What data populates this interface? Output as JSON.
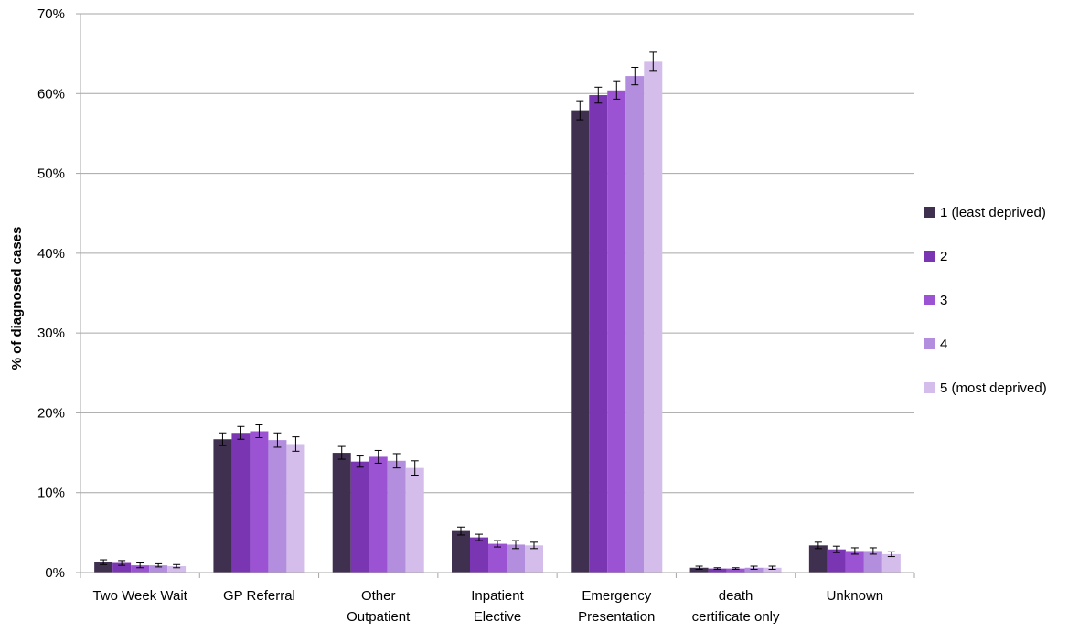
{
  "chart_data": {
    "type": "bar",
    "title": "",
    "xlabel": "",
    "ylabel": "% of diagnosed cases",
    "ylim": [
      0,
      70
    ],
    "yticks": [
      0,
      10,
      20,
      30,
      40,
      50,
      60,
      70
    ],
    "ytick_labels": [
      "0%",
      "10%",
      "20%",
      "30%",
      "40%",
      "50%",
      "60%",
      "70%"
    ],
    "grid": true,
    "legend_position": "right",
    "categories": [
      [
        "Two Week Wait"
      ],
      [
        "GP Referral"
      ],
      [
        "Other",
        "Outpatient"
      ],
      [
        "Inpatient",
        "Elective"
      ],
      [
        "Emergency",
        "Presentation"
      ],
      [
        "death",
        "certificate only"
      ],
      [
        "Unknown"
      ]
    ],
    "series": [
      {
        "name": "1 (least deprived)",
        "color": "#403050",
        "values": [
          1.3,
          16.7,
          15.0,
          5.2,
          57.9,
          0.6,
          3.4
        ],
        "errors": [
          0.3,
          0.8,
          0.8,
          0.5,
          1.2,
          0.2,
          0.4
        ]
      },
      {
        "name": "2",
        "color": "#7a35b3",
        "values": [
          1.2,
          17.5,
          13.9,
          4.4,
          59.8,
          0.5,
          2.9
        ],
        "errors": [
          0.3,
          0.8,
          0.7,
          0.4,
          1.0,
          0.1,
          0.4
        ]
      },
      {
        "name": "3",
        "color": "#9b52d3",
        "values": [
          0.9,
          17.7,
          14.5,
          3.6,
          60.4,
          0.5,
          2.7
        ],
        "errors": [
          0.3,
          0.8,
          0.8,
          0.4,
          1.1,
          0.1,
          0.4
        ]
      },
      {
        "name": "4",
        "color": "#b38ede",
        "values": [
          0.9,
          16.6,
          14.0,
          3.5,
          62.2,
          0.6,
          2.7
        ],
        "errors": [
          0.2,
          0.9,
          0.9,
          0.5,
          1.1,
          0.2,
          0.4
        ]
      },
      {
        "name": "5 (most deprived)",
        "color": "#d4bdea",
        "values": [
          0.8,
          16.1,
          13.1,
          3.4,
          64.0,
          0.6,
          2.3
        ],
        "errors": [
          0.2,
          0.9,
          0.9,
          0.4,
          1.2,
          0.2,
          0.3
        ]
      }
    ]
  }
}
